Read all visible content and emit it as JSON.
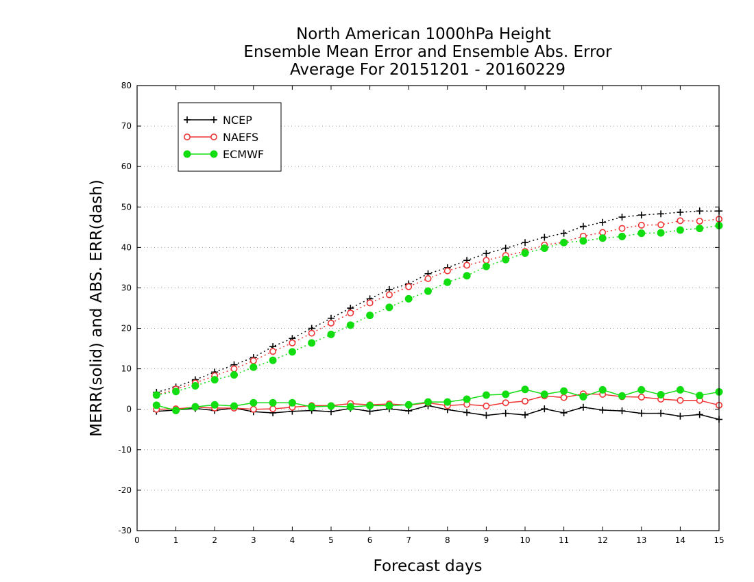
{
  "chart_data": {
    "type": "line",
    "title": [
      "North American 1000hPa Height",
      "Ensemble Mean Error and Ensemble Abs. Error",
      "Average For 20151201 - 20160229"
    ],
    "xlabel": "Forecast days",
    "ylabel": "MERR(solid) and ABS. ERR(dash)",
    "xlim": [
      0,
      15
    ],
    "ylim": [
      -30,
      80
    ],
    "xticks": [
      0,
      1,
      2,
      3,
      4,
      5,
      6,
      7,
      8,
      9,
      10,
      11,
      12,
      13,
      14,
      15
    ],
    "yticks": [
      -30,
      -20,
      -10,
      0,
      10,
      20,
      30,
      40,
      50,
      60,
      70,
      80
    ],
    "x": [
      0.5,
      1,
      1.5,
      2,
      2.5,
      3,
      3.5,
      4,
      4.5,
      5,
      5.5,
      6,
      6.5,
      7,
      7.5,
      8,
      8.5,
      9,
      9.5,
      10,
      10.5,
      11,
      11.5,
      12,
      12.5,
      13,
      13.5,
      14,
      14.5,
      15
    ],
    "grid": "horizontal dotted",
    "legend_position": "top-left",
    "series": [
      {
        "name": "NCEP",
        "color": "#000000",
        "marker": "plus",
        "merr": [
          -0.5,
          -0.2,
          0.2,
          -0.3,
          0.3,
          -0.6,
          -0.9,
          -0.5,
          -0.3,
          -0.6,
          0.2,
          -0.5,
          0.1,
          -0.4,
          0.9,
          -0.1,
          -0.8,
          -1.5,
          -1.0,
          -1.4,
          0.1,
          -0.9,
          0.5,
          -0.2,
          -0.4,
          -1.0,
          -1.0,
          -1.7,
          -1.3,
          -2.5
        ],
        "abs_err": [
          4.2,
          5.5,
          7.3,
          9.2,
          11.0,
          12.8,
          15.5,
          17.5,
          20.0,
          22.5,
          25.0,
          27.3,
          29.6,
          31.0,
          33.5,
          35.0,
          36.8,
          38.5,
          39.8,
          41.2,
          42.5,
          43.5,
          45.2,
          46.2,
          47.5,
          48.0,
          48.3,
          48.7,
          49.0,
          49.0
        ]
      },
      {
        "name": "NAEFS",
        "color": "#ee3333",
        "marker": "open-circle",
        "merr": [
          0.0,
          0.1,
          0.5,
          0.3,
          0.3,
          0.0,
          0.1,
          0.5,
          0.9,
          0.9,
          1.4,
          1.1,
          1.3,
          1.0,
          1.6,
          0.9,
          1.2,
          0.8,
          1.6,
          2.0,
          3.3,
          2.9,
          3.8,
          3.7,
          3.1,
          3.0,
          2.5,
          2.2,
          2.2,
          1.0
        ],
        "abs_err": [
          3.5,
          5.0,
          6.5,
          8.3,
          10.0,
          12.0,
          14.3,
          16.4,
          18.8,
          21.3,
          23.8,
          26.3,
          28.3,
          30.3,
          32.3,
          34.2,
          35.6,
          36.8,
          38.0,
          39.0,
          40.6,
          41.3,
          42.8,
          43.7,
          44.7,
          45.5,
          45.6,
          46.6,
          46.5,
          47.0
        ]
      },
      {
        "name": "ECMWF",
        "color": "#11dd11",
        "marker": "filled-circle",
        "merr": [
          1.0,
          -0.3,
          0.6,
          1.1,
          0.8,
          1.6,
          1.6,
          1.6,
          0.6,
          0.8,
          0.6,
          0.9,
          0.9,
          1.1,
          1.8,
          1.8,
          2.5,
          3.5,
          3.7,
          4.9,
          3.7,
          4.5,
          3.1,
          4.8,
          3.3,
          4.8,
          3.6,
          4.8,
          3.4,
          4.3
        ],
        "abs_err": [
          3.5,
          4.4,
          5.8,
          7.3,
          8.5,
          10.4,
          12.1,
          14.2,
          16.4,
          18.5,
          20.8,
          23.2,
          25.2,
          27.3,
          29.2,
          31.4,
          33.0,
          35.3,
          37.0,
          38.6,
          39.8,
          41.2,
          41.6,
          42.3,
          42.7,
          43.5,
          43.6,
          44.3,
          44.7,
          45.4
        ]
      }
    ]
  }
}
